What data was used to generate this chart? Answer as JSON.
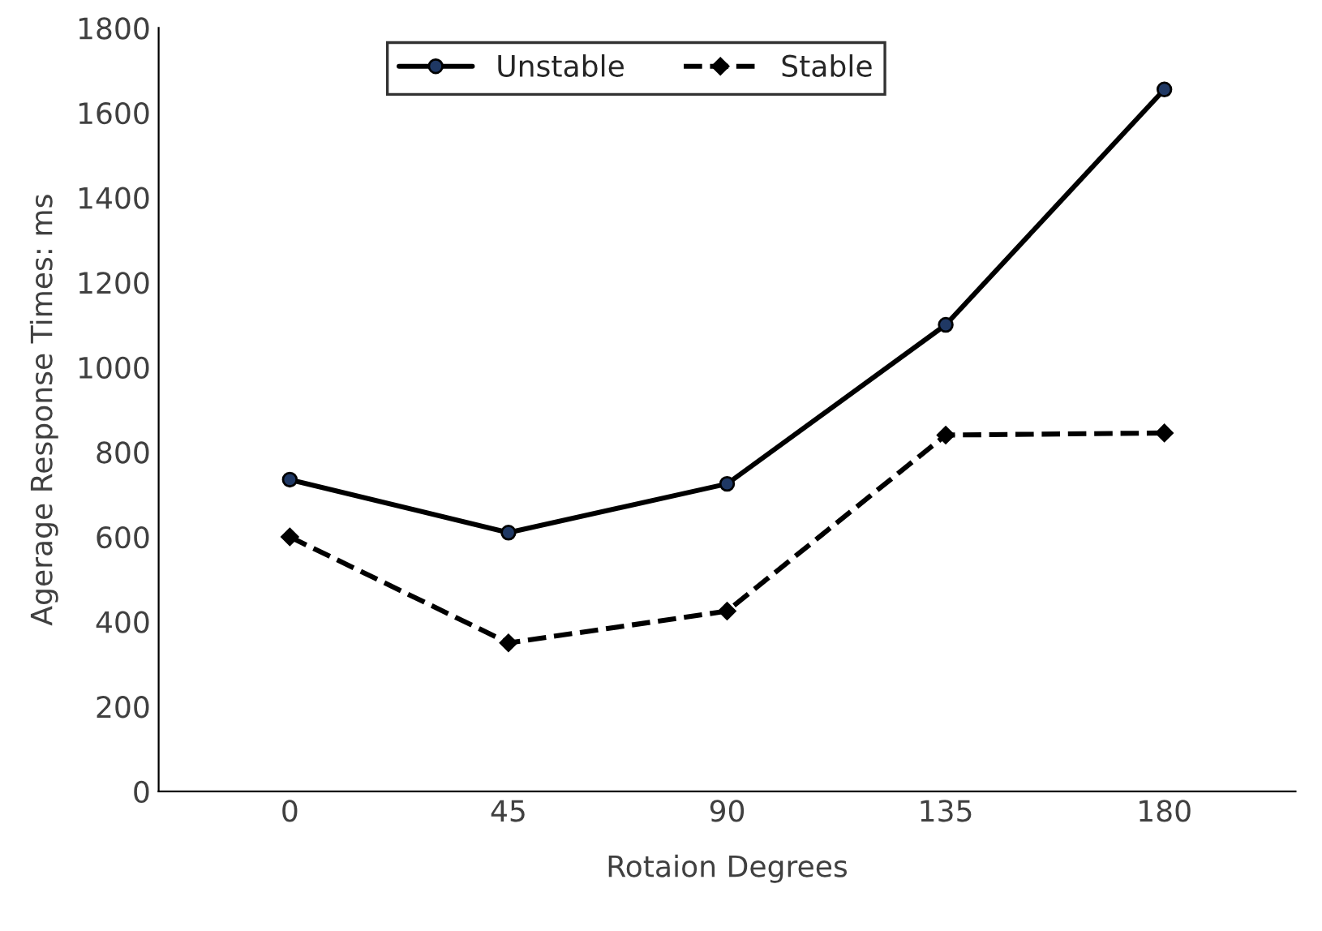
{
  "chart_data": {
    "type": "line",
    "xlabel": "Rotaion Degrees",
    "ylabel": "Agerage Response Times: ms",
    "categories": [
      "0",
      "45",
      "90",
      "135",
      "180"
    ],
    "series": [
      {
        "name": "Unstable",
        "color": "#000000",
        "values": [
          735,
          610,
          725,
          1100,
          1655
        ],
        "marker": "circle",
        "line_style": "solid"
      },
      {
        "name": "Stable",
        "color": "#000000",
        "values": [
          600,
          350,
          425,
          840,
          845
        ],
        "marker": "diamond",
        "line_style": "dashed"
      }
    ],
    "ylim": [
      0,
      1800
    ],
    "yticks": [
      0,
      200,
      400,
      600,
      800,
      1000,
      1200,
      1400,
      1600,
      1800
    ],
    "grid": false,
    "legend": "top"
  }
}
